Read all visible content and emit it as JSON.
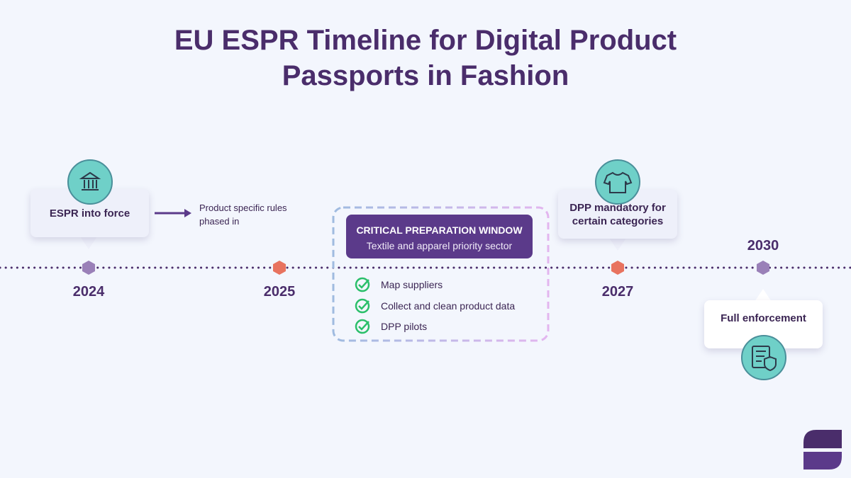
{
  "header": {
    "title": "EU ESPR Timeline for Digital Product Passports in Fashion"
  },
  "milestones": [
    {
      "year": "2024",
      "label": "ESPR into force"
    },
    {
      "year": "2025",
      "note": "Product specific rules phased in"
    },
    {
      "year": "2027",
      "label": "DPP mandatory for certain categories"
    },
    {
      "year": "2030",
      "label": "Full enforcement"
    }
  ],
  "preparation_window": {
    "title": "CRITICAL PREPARATION WINDOW",
    "subtitle": "Textile and apparel priority sector",
    "items": [
      "Map suppliers",
      "Collect and clean product data",
      "DPP pilots"
    ]
  }
}
